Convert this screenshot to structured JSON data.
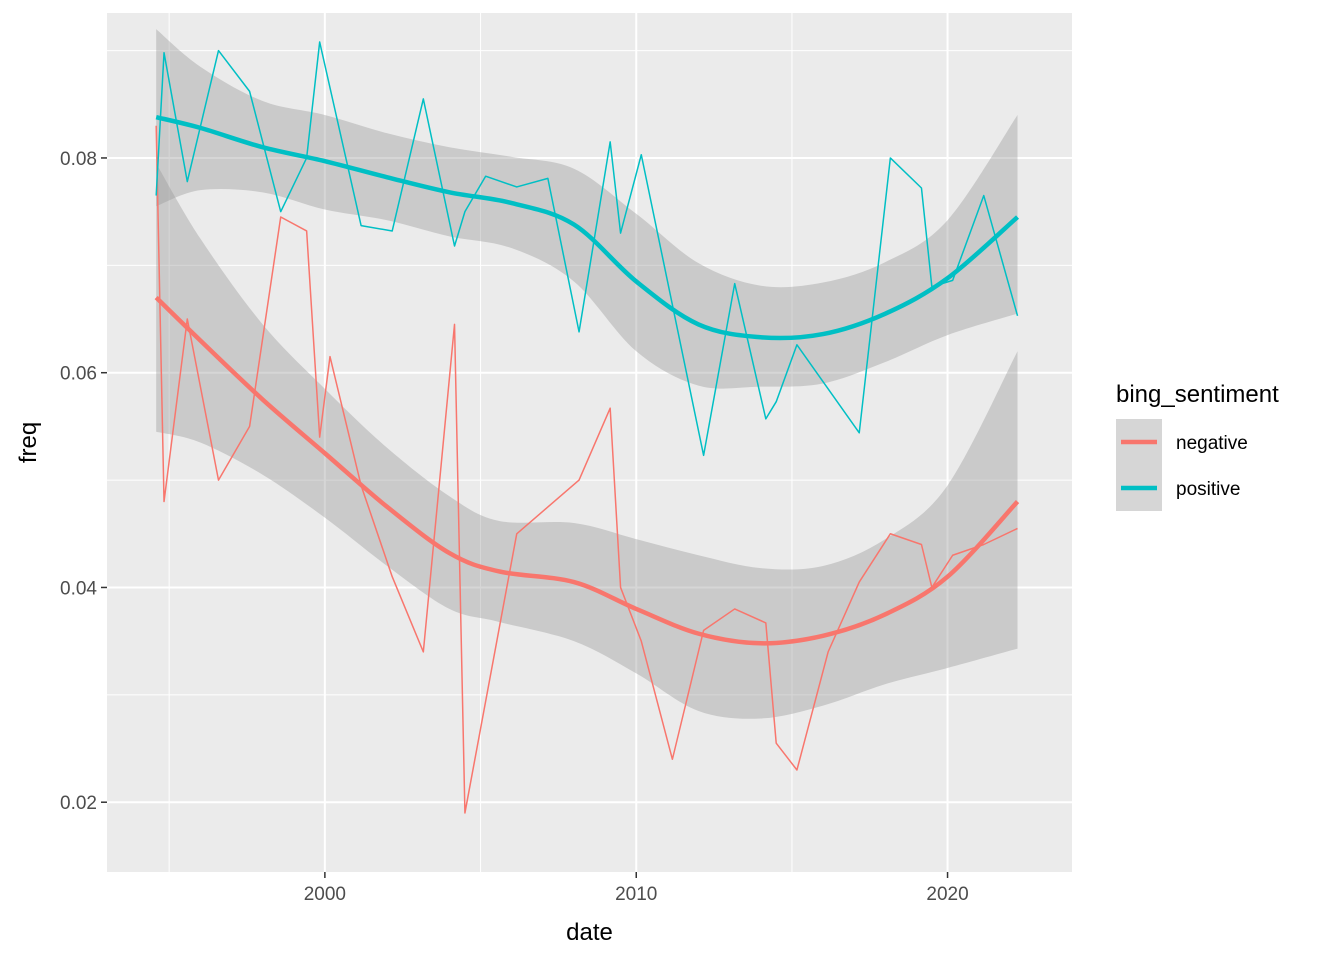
{
  "chart_data": {
    "type": "line",
    "title": "",
    "xlabel": "date",
    "ylabel": "freq",
    "xlim": [
      "1993-01-01",
      "2023-12-31"
    ],
    "ylim": [
      0.0135,
      0.0935
    ],
    "x_ticks": [
      "2000-01-01",
      "2010-01-01",
      "2020-01-01"
    ],
    "x_tick_labels": [
      "2000",
      "2010",
      "2020"
    ],
    "y_ticks": [
      0.02,
      0.04,
      0.06,
      0.08
    ],
    "y_tick_labels": [
      "0.02",
      "0.04",
      "0.06",
      "0.08"
    ],
    "grid": true,
    "panel_background": "#ebebeb",
    "ribbon_color": "#999999",
    "legend": {
      "title": "bing_sentiment",
      "position": "right",
      "entries": [
        {
          "label": "negative",
          "color": "#F8766D"
        },
        {
          "label": "positive",
          "color": "#00BFC4"
        }
      ]
    },
    "series": [
      {
        "name": "negative",
        "color": "#F8766D",
        "x": [
          "1994-08-01",
          "1994-11-01",
          "1995-08-01",
          "1996-08-01",
          "1997-08-01",
          "1998-08-01",
          "1999-06-01",
          "1999-11-01",
          "2000-03-01",
          "2001-03-01",
          "2002-03-01",
          "2003-03-01",
          "2004-03-01",
          "2004-07-01",
          "2006-03-01",
          "2008-03-01",
          "2009-03-01",
          "2009-07-01",
          "2010-03-01",
          "2011-03-01",
          "2012-03-01",
          "2013-03-01",
          "2014-03-01",
          "2014-07-01",
          "2015-03-01",
          "2016-03-01",
          "2017-03-01",
          "2018-03-01",
          "2019-03-01",
          "2019-07-01",
          "2020-03-01",
          "2021-03-01",
          "2022-04-01"
        ],
        "values": [
          0.083,
          0.048,
          0.065,
          0.05,
          0.055,
          0.0745,
          0.0732,
          0.054,
          0.0615,
          0.0495,
          0.041,
          0.034,
          0.0645,
          0.019,
          0.045,
          0.05,
          0.0567,
          0.04,
          0.035,
          0.024,
          0.036,
          0.038,
          0.0367,
          0.0255,
          0.023,
          0.034,
          0.0405,
          0.045,
          0.044,
          0.04,
          0.043,
          0.044,
          0.0455
        ],
        "smooth": {
          "x": [
            "1994-08-01",
            "1996-01-01",
            "1998-01-01",
            "2000-01-01",
            "2002-01-01",
            "2004-01-01",
            "2005-08-01",
            "2008-01-01",
            "2010-01-01",
            "2012-01-01",
            "2014-01-01",
            "2016-01-01",
            "2018-01-01",
            "2020-01-01",
            "2022-04-01"
          ],
          "values": [
            0.067,
            0.063,
            0.0575,
            0.0525,
            0.0475,
            0.0432,
            0.0415,
            0.0405,
            0.038,
            0.0357,
            0.0348,
            0.0355,
            0.0375,
            0.041,
            0.048
          ],
          "lower": [
            0.0545,
            0.0535,
            0.0505,
            0.0465,
            0.042,
            0.038,
            0.0368,
            0.035,
            0.032,
            0.0285,
            0.0278,
            0.029,
            0.031,
            0.0325,
            0.0343
          ],
          "upper": [
            0.0795,
            0.0725,
            0.0645,
            0.0585,
            0.053,
            0.0485,
            0.0462,
            0.046,
            0.0445,
            0.043,
            0.0418,
            0.042,
            0.0445,
            0.0495,
            0.062
          ]
        }
      },
      {
        "name": "positive",
        "color": "#00BFC4",
        "x": [
          "1994-08-01",
          "1994-11-01",
          "1995-08-01",
          "1996-08-01",
          "1997-08-01",
          "1998-08-01",
          "1999-06-01",
          "1999-11-01",
          "2001-03-01",
          "2002-03-01",
          "2003-03-01",
          "2004-03-01",
          "2004-07-01",
          "2005-03-01",
          "2006-03-01",
          "2007-03-01",
          "2008-03-01",
          "2009-03-01",
          "2009-07-01",
          "2010-03-01",
          "2012-03-01",
          "2013-03-01",
          "2014-03-01",
          "2014-07-01",
          "2015-03-01",
          "2017-03-01",
          "2018-03-01",
          "2019-03-01",
          "2019-07-01",
          "2020-03-01",
          "2021-03-01",
          "2022-04-01"
        ],
        "values": [
          0.0765,
          0.0898,
          0.0778,
          0.09,
          0.0862,
          0.075,
          0.08,
          0.0908,
          0.0737,
          0.0732,
          0.0855,
          0.0718,
          0.075,
          0.0783,
          0.0773,
          0.0781,
          0.0638,
          0.0815,
          0.073,
          0.0803,
          0.0523,
          0.0683,
          0.0557,
          0.0573,
          0.0626,
          0.0544,
          0.08,
          0.0772,
          0.068,
          0.0686,
          0.0765,
          0.0653
        ],
        "smooth": {
          "x": [
            "1994-08-01",
            "1996-01-01",
            "1998-01-01",
            "2000-01-01",
            "2002-01-01",
            "2004-01-01",
            "2006-01-01",
            "2008-01-01",
            "2010-01-01",
            "2012-01-01",
            "2014-01-01",
            "2016-01-01",
            "2018-01-01",
            "2020-01-01",
            "2022-04-01"
          ],
          "values": [
            0.0838,
            0.0828,
            0.081,
            0.0797,
            0.0782,
            0.0768,
            0.0758,
            0.0738,
            0.0685,
            0.0645,
            0.0633,
            0.0636,
            0.0655,
            0.0688,
            0.0745
          ],
          "lower": [
            0.0755,
            0.077,
            0.0768,
            0.0752,
            0.0742,
            0.0727,
            0.0716,
            0.0685,
            0.062,
            0.0588,
            0.0587,
            0.059,
            0.061,
            0.0635,
            0.0655
          ],
          "upper": [
            0.092,
            0.0885,
            0.0853,
            0.084,
            0.0823,
            0.081,
            0.0801,
            0.079,
            0.0748,
            0.0702,
            0.0681,
            0.0684,
            0.0703,
            0.0742,
            0.084
          ]
        }
      }
    ]
  }
}
